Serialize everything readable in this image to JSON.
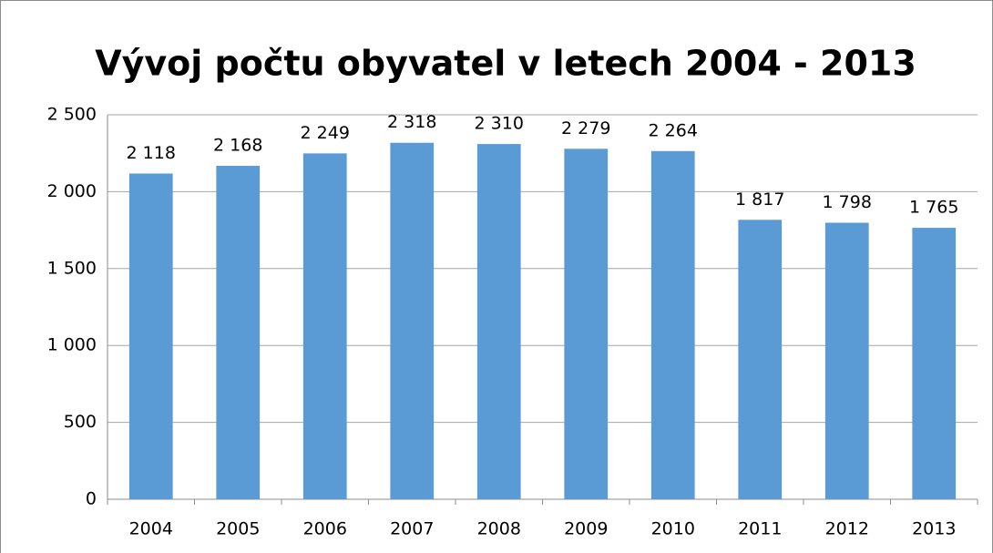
{
  "chart_data": {
    "type": "bar",
    "title": "Vývoj počtu obyvatel v letech 2004 - 2013",
    "categories": [
      "2004",
      "2005",
      "2006",
      "2007",
      "2008",
      "2009",
      "2010",
      "2011",
      "2012",
      "2013"
    ],
    "values": [
      2118,
      2168,
      2249,
      2318,
      2310,
      2279,
      2264,
      1817,
      1798,
      1765
    ],
    "value_labels": [
      "2 118",
      "2 168",
      "2 249",
      "2 318",
      "2 310",
      "2 279",
      "2 264",
      "1 817",
      "1 798",
      "1 765"
    ],
    "color": "#5b9bd5",
    "ylim": [
      0,
      2500
    ],
    "yticks": [
      0,
      500,
      {
        "value": 1000,
        "label": "1 000"
      },
      {
        "value": 1500,
        "label": "1 500"
      },
      {
        "value": 2000,
        "label": "2 000"
      },
      {
        "value": 2500,
        "label": "2 500"
      }
    ],
    "grid": true
  }
}
